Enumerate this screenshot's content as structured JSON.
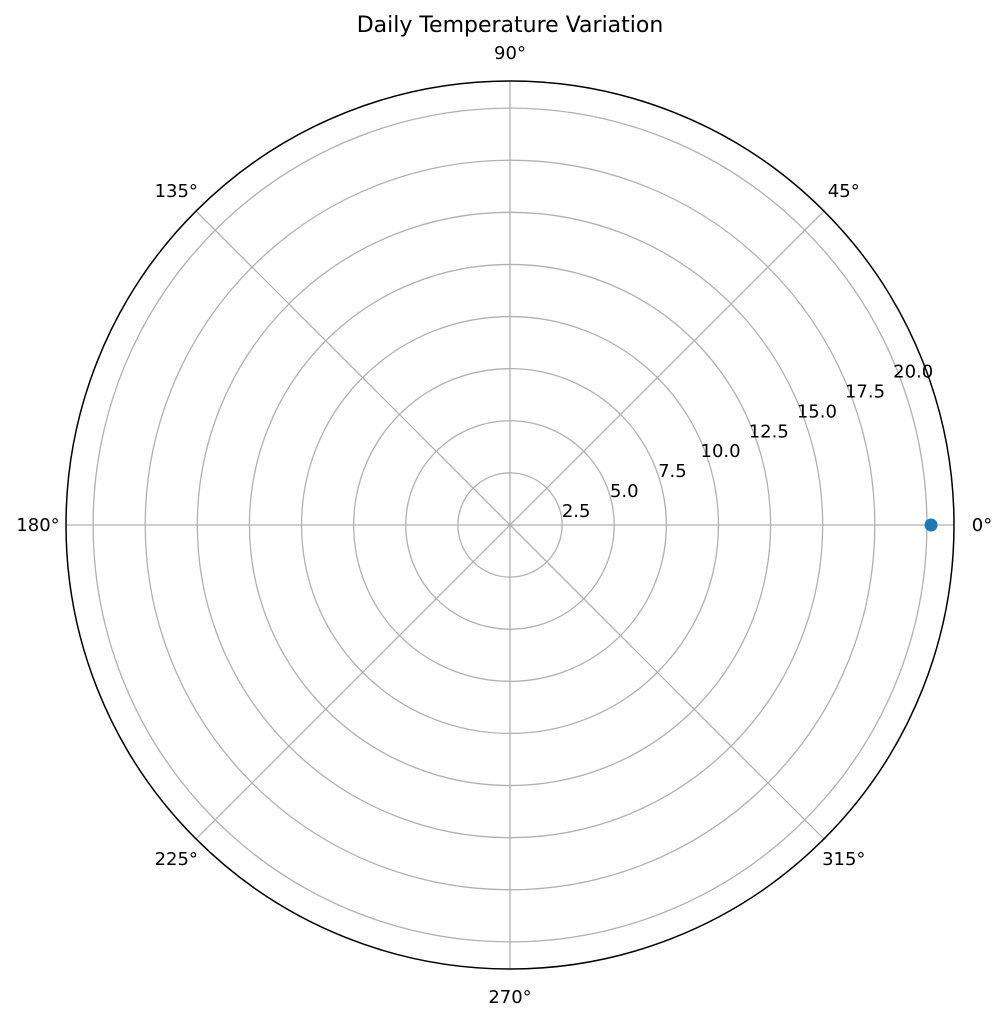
{
  "chart_data": {
    "type": "scatter",
    "projection": "polar",
    "title": "Daily Temperature Variation",
    "theta_ticks_deg": [
      0,
      45,
      90,
      135,
      180,
      225,
      270,
      315
    ],
    "theta_tick_labels": [
      "0°",
      "45°",
      "90°",
      "135°",
      "180°",
      "225°",
      "270°",
      "315°"
    ],
    "r_ticks": [
      2.5,
      5.0,
      7.5,
      10.0,
      12.5,
      15.0,
      17.5,
      20.0
    ],
    "r_tick_labels": [
      "2.5",
      "5.0",
      "7.5",
      "10.0",
      "12.5",
      "15.0",
      "17.5",
      "20.0"
    ],
    "rlim": [
      0,
      21.3
    ],
    "grid": true,
    "series": [
      {
        "theta_deg": [
          0
        ],
        "r": [
          20.2
        ],
        "color": "#1f77b4",
        "marker": "circle"
      }
    ]
  }
}
